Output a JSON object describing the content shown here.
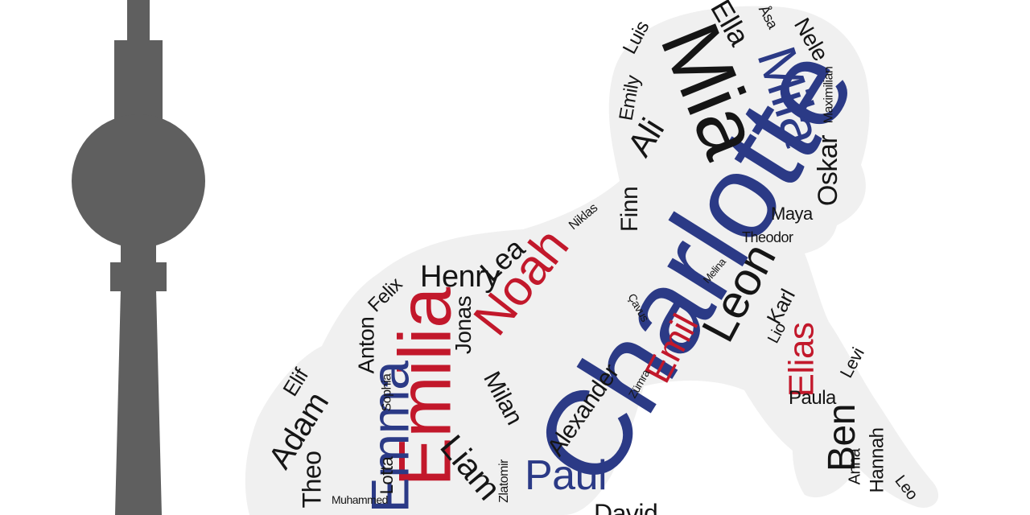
{
  "colors": {
    "tower": "#5f5f5f",
    "baby_silhouette": "#f0f0f0",
    "black": "#151515",
    "blue": "#2b3a86",
    "red": "#c2182b"
  },
  "words": {
    "charlotte": "Charlotte",
    "mia": "Mia",
    "mila": "Mila",
    "ella": "Ella",
    "asa": "Åsa",
    "nele": "Nele",
    "luis": "Luis",
    "maximilian": "Maximilian",
    "emily": "Emily",
    "ali": "Ali",
    "oskar": "Oskar",
    "finn": "Finn",
    "maya": "Maya",
    "niklas": "Niklas",
    "theodor": "Theodor",
    "noah": "Noah",
    "lea": "Lea",
    "leon": "Leon",
    "henry": "Henry",
    "felix": "Felix",
    "melina": "Melina",
    "karl": "Karl",
    "emilia": "Emilia",
    "jonas": "Jonas",
    "anton": "Anton",
    "cavus": "Çavus",
    "emil": "Emil",
    "lio": "Lio",
    "elias": "Elias",
    "levi": "Levi",
    "elif": "Elif",
    "emma": "Emma",
    "sophia": "Sophia",
    "milan": "Milan",
    "alexander": "Alexander",
    "zumra": "Zümra",
    "paula": "Paula",
    "adam": "Adam",
    "ben": "Ben",
    "liam": "Liam",
    "theo": "Theo",
    "lotta": "Lotta",
    "zlatomir": "Zlatomir",
    "paul": "Paul",
    "anna": "Anna",
    "hannah": "Hannah",
    "leo": "Leo",
    "muhammed": "Muhammed",
    "david": "David"
  }
}
